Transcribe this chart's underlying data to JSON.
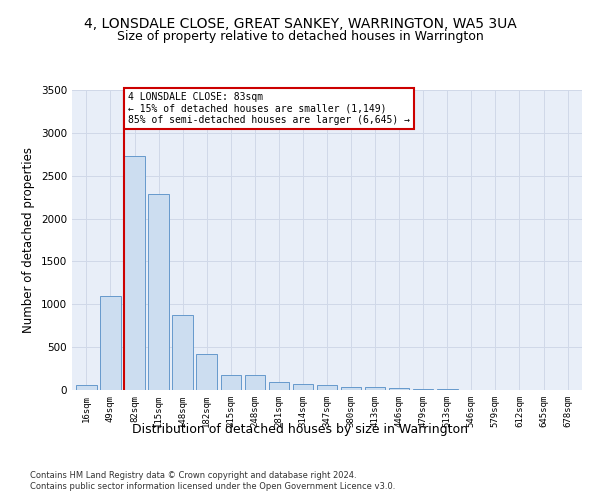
{
  "title1": "4, LONSDALE CLOSE, GREAT SANKEY, WARRINGTON, WA5 3UA",
  "title2": "Size of property relative to detached houses in Warrington",
  "xlabel": "Distribution of detached houses by size in Warrington",
  "ylabel": "Number of detached properties",
  "footer1": "Contains HM Land Registry data © Crown copyright and database right 2024.",
  "footer2": "Contains public sector information licensed under the Open Government Licence v3.0.",
  "bar_labels": [
    "16sqm",
    "49sqm",
    "82sqm",
    "115sqm",
    "148sqm",
    "182sqm",
    "215sqm",
    "248sqm",
    "281sqm",
    "314sqm",
    "347sqm",
    "380sqm",
    "413sqm",
    "446sqm",
    "479sqm",
    "513sqm",
    "546sqm",
    "579sqm",
    "612sqm",
    "645sqm",
    "678sqm"
  ],
  "bar_values": [
    55,
    1100,
    2730,
    2290,
    875,
    425,
    175,
    170,
    90,
    65,
    55,
    40,
    35,
    25,
    15,
    10,
    5,
    5,
    0,
    0,
    0
  ],
  "bar_color": "#ccddf0",
  "bar_edge_color": "#6699cc",
  "grid_color": "#d0d8e8",
  "bg_color": "#e8eef8",
  "vline_color": "#cc0000",
  "annotation_box_color": "#cc0000",
  "ylim": [
    0,
    3500
  ],
  "yticks": [
    0,
    500,
    1000,
    1500,
    2000,
    2500,
    3000,
    3500
  ],
  "title1_fontsize": 10,
  "title2_fontsize": 9,
  "ylabel_fontsize": 8.5,
  "xlabel_fontsize": 9,
  "annotation_line1": "4 LONSDALE CLOSE: 83sqm",
  "annotation_line2": "← 15% of detached houses are smaller (1,149)",
  "annotation_line3": "85% of semi-detached houses are larger (6,645) →"
}
